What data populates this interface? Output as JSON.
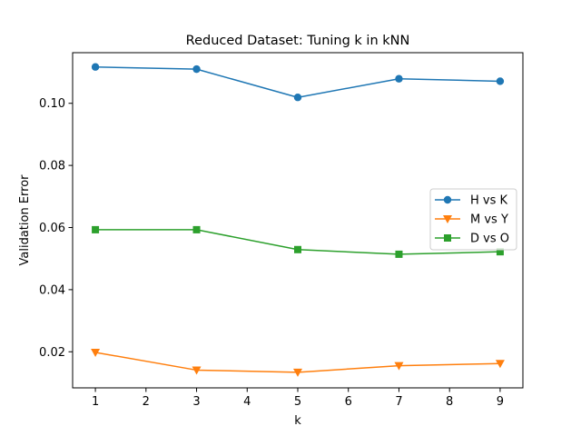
{
  "chart_data": {
    "type": "line",
    "title": "Reduced Dataset: Tuning k in kNN",
    "xlabel": "k",
    "ylabel": "Validation Error",
    "xlim": [
      0.55,
      9.45
    ],
    "ylim": [
      0.00838,
      0.1163
    ],
    "xticks": [
      1,
      2,
      3,
      4,
      5,
      6,
      7,
      8,
      9
    ],
    "xtick_labels": [
      "1",
      "2",
      "3",
      "4",
      "5",
      "6",
      "7",
      "8",
      "9"
    ],
    "yticks": [
      0.02,
      0.04,
      0.06,
      0.08,
      0.1
    ],
    "ytick_labels": [
      "0.02",
      "0.04",
      "0.06",
      "0.08",
      "0.10"
    ],
    "grid": false,
    "legend_position": "center-right",
    "x": [
      1,
      3,
      5,
      7,
      9
    ],
    "series": [
      {
        "name": "H vs K",
        "values": [
          0.1117,
          0.111,
          0.1019,
          0.1079,
          0.1071
        ],
        "color": "#1f77b4",
        "marker": "circle"
      },
      {
        "name": "M vs Y",
        "values": [
          0.0198,
          0.0141,
          0.0134,
          0.0155,
          0.0162
        ],
        "color": "#ff7f0e",
        "marker": "triangle-down"
      },
      {
        "name": "D vs O",
        "values": [
          0.0593,
          0.0593,
          0.0529,
          0.0514,
          0.0522
        ],
        "color": "#2ca02c",
        "marker": "square"
      }
    ]
  }
}
